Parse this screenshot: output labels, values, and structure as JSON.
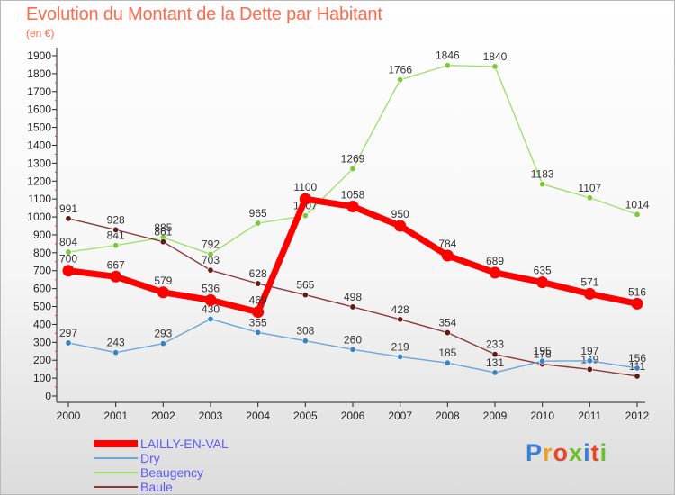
{
  "header": {
    "title": "Evolution du Montant de la Dette par Habitant",
    "subtitle": "(en €)"
  },
  "logo": {
    "text": "Proxiti",
    "colors": [
      "#3a7fd5",
      "#f29f1d",
      "#e8452c",
      "#6cbf2a",
      "#3a7fd5",
      "#e8452c",
      "#6cbf2a"
    ]
  },
  "chart_data": {
    "type": "line",
    "title": "Evolution du Montant de la Dette par Habitant",
    "ylabel": "(en €)",
    "xlabel": "",
    "ylim": [
      0,
      1900
    ],
    "yticks": [
      0,
      100,
      200,
      300,
      400,
      500,
      600,
      700,
      800,
      900,
      1000,
      1100,
      1200,
      1300,
      1400,
      1500,
      1600,
      1700,
      1800,
      1900
    ],
    "x": [
      "2000",
      "2001",
      "2002",
      "2003",
      "2004",
      "2005",
      "2006",
      "2007",
      "2008",
      "2009",
      "2010",
      "2011",
      "2012"
    ],
    "grid": false,
    "legend_position": "bottom-left",
    "series": [
      {
        "name": "Beaugency",
        "color": "#a0e070",
        "marker": "#7cc73c",
        "values": [
          804,
          841,
          885,
          792,
          965,
          1007,
          1269,
          1766,
          1846,
          1840,
          1183,
          1107,
          1014
        ]
      },
      {
        "name": "Baule",
        "color": "#8a3a3a",
        "marker": "#5c1a1a",
        "values": [
          991,
          928,
          861,
          703,
          628,
          565,
          498,
          428,
          354,
          233,
          178,
          149,
          111
        ]
      },
      {
        "name": "Dry",
        "color": "#6aa6d8",
        "marker": "#3a82c4",
        "values": [
          297,
          243,
          293,
          430,
          355,
          308,
          260,
          219,
          185,
          131,
          195,
          197,
          156
        ]
      },
      {
        "name": "LAILLY-EN-VAL",
        "color": "#ff0000",
        "marker": "#ff0000",
        "values": [
          700,
          667,
          579,
          536,
          469,
          1100,
          1058,
          950,
          784,
          689,
          635,
          571,
          516
        ]
      }
    ],
    "legend_order": [
      "LAILLY-EN-VAL",
      "Dry",
      "Beaugency",
      "Baule"
    ]
  }
}
